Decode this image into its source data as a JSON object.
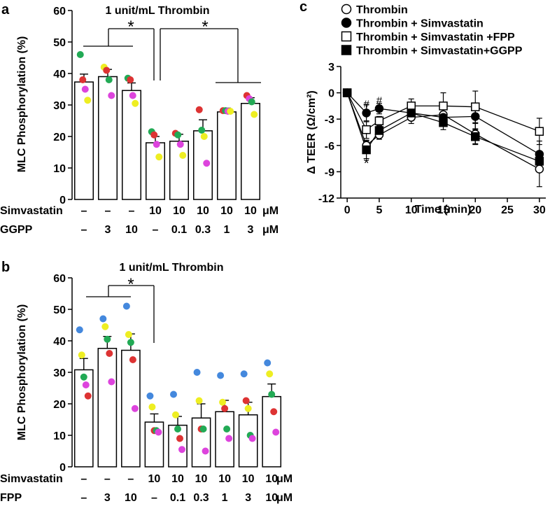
{
  "chart_data": [
    {
      "panel": "a",
      "type": "bar",
      "title": "1 unit/mL Thrombin",
      "ylabel": "MLC Phosphorylation (%)",
      "ylim": [
        0,
        60
      ],
      "yticks": [
        0,
        10,
        20,
        30,
        40,
        50,
        60
      ],
      "values": [
        37.3,
        39.0,
        34.6,
        18.0,
        18.5,
        21.8,
        27.8,
        30.5
      ],
      "errors": [
        2.5,
        2.3,
        2.4,
        2.0,
        2.2,
        3.5,
        1.2,
        1.8
      ],
      "points": [
        [
          {
            "v": 46.0,
            "c": "#22aa55"
          },
          {
            "v": 38.0,
            "c": "#dd3333"
          },
          {
            "v": 35.0,
            "c": "#dd44dd"
          },
          {
            "v": 31.5,
            "c": "#eeee22"
          }
        ],
        [
          {
            "v": 42.0,
            "c": "#eeee22"
          },
          {
            "v": 41.0,
            "c": "#dd3333"
          },
          {
            "v": 38.0,
            "c": "#22aa55"
          },
          {
            "v": 33.0,
            "c": "#dd44dd"
          }
        ],
        [
          {
            "v": 38.5,
            "c": "#22aa55"
          },
          {
            "v": 38.0,
            "c": "#dd3333"
          },
          {
            "v": 33.0,
            "c": "#dd44dd"
          },
          {
            "v": 30.5,
            "c": "#eeee22"
          }
        ],
        [
          {
            "v": 21.5,
            "c": "#22aa55"
          },
          {
            "v": 20.5,
            "c": "#dd3333"
          },
          {
            "v": 17.5,
            "c": "#dd44dd"
          },
          {
            "v": 13.5,
            "c": "#eeee22"
          }
        ],
        [
          {
            "v": 21.0,
            "c": "#dd3333"
          },
          {
            "v": 20.5,
            "c": "#22aa55"
          },
          {
            "v": 17.5,
            "c": "#dd44dd"
          },
          {
            "v": 14.0,
            "c": "#eeee22"
          }
        ],
        [
          {
            "v": 28.5,
            "c": "#dd3333"
          },
          {
            "v": 22.0,
            "c": "#22aa55"
          },
          {
            "v": 20.0,
            "c": "#eeee22"
          },
          {
            "v": 11.5,
            "c": "#dd44dd"
          }
        ],
        [
          {
            "v": 28.2,
            "c": "#dd3333"
          },
          {
            "v": 28.2,
            "c": "#22aa55"
          },
          {
            "v": 28.0,
            "c": "#dd44dd"
          },
          {
            "v": 28.0,
            "c": "#eeee22"
          }
        ],
        [
          {
            "v": 33.0,
            "c": "#dd3333"
          },
          {
            "v": 32.0,
            "c": "#dd44dd"
          },
          {
            "v": 31.0,
            "c": "#22aa55"
          },
          {
            "v": 27.0,
            "c": "#eeee22"
          }
        ]
      ],
      "rows": [
        {
          "label": "Simvastatin",
          "unit": "μM",
          "cells": [
            "–",
            "–",
            "–",
            "10",
            "10",
            "10",
            "10",
            "10"
          ]
        },
        {
          "label": "GGPP",
          "unit": "μM",
          "cells": [
            "–",
            "3",
            "10",
            "–",
            "0.1",
            "0.3",
            "1",
            "3"
          ]
        }
      ],
      "significance": "*"
    },
    {
      "panel": "b",
      "type": "bar",
      "title": "1 unit/mL Thrombin",
      "ylabel": "MLC Phosphorylation (%)",
      "ylim": [
        0,
        60
      ],
      "yticks": [
        0,
        10,
        20,
        30,
        40,
        50,
        60
      ],
      "values": [
        30.8,
        37.6,
        37.0,
        14.2,
        13.2,
        15.5,
        17.5,
        16.5,
        22.3
      ],
      "errors": [
        3.6,
        3.8,
        5.2,
        2.6,
        2.8,
        4.5,
        3.6,
        4.0,
        4.0
      ],
      "points": [
        [
          {
            "v": 43.5,
            "c": "#4488dd"
          },
          {
            "v": 35.5,
            "c": "#eeee22"
          },
          {
            "v": 28.5,
            "c": "#22aa55"
          },
          {
            "v": 26.0,
            "c": "#dd44dd"
          },
          {
            "v": 22.5,
            "c": "#dd3333"
          }
        ],
        [
          {
            "v": 47.0,
            "c": "#4488dd"
          },
          {
            "v": 44.5,
            "c": "#eeee22"
          },
          {
            "v": 40.5,
            "c": "#22aa55"
          },
          {
            "v": 36.0,
            "c": "#dd3333"
          },
          {
            "v": 27.0,
            "c": "#dd44dd"
          }
        ],
        [
          {
            "v": 51.0,
            "c": "#4488dd"
          },
          {
            "v": 42.0,
            "c": "#eeee22"
          },
          {
            "v": 39.5,
            "c": "#22aa55"
          },
          {
            "v": 34.0,
            "c": "#dd3333"
          },
          {
            "v": 18.5,
            "c": "#dd44dd"
          }
        ],
        [
          {
            "v": 22.5,
            "c": "#4488dd"
          },
          {
            "v": 19.0,
            "c": "#eeee22"
          },
          {
            "v": 11.5,
            "c": "#dd3333"
          },
          {
            "v": 11.5,
            "c": "#22aa55"
          },
          {
            "v": 11.0,
            "c": "#dd44dd"
          }
        ],
        [
          {
            "v": 23.0,
            "c": "#4488dd"
          },
          {
            "v": 16.5,
            "c": "#eeee22"
          },
          {
            "v": 12.0,
            "c": "#22aa55"
          },
          {
            "v": 9.0,
            "c": "#dd3333"
          },
          {
            "v": 5.5,
            "c": "#dd44dd"
          }
        ],
        [
          {
            "v": 30.0,
            "c": "#4488dd"
          },
          {
            "v": 21.0,
            "c": "#eeee22"
          },
          {
            "v": 12.0,
            "c": "#dd3333"
          },
          {
            "v": 12.0,
            "c": "#22aa55"
          },
          {
            "v": 5.0,
            "c": "#dd44dd"
          }
        ],
        [
          {
            "v": 29.0,
            "c": "#4488dd"
          },
          {
            "v": 20.5,
            "c": "#eeee22"
          },
          {
            "v": 18.5,
            "c": "#dd3333"
          },
          {
            "v": 12.0,
            "c": "#22aa55"
          },
          {
            "v": 9.0,
            "c": "#dd44dd"
          }
        ],
        [
          {
            "v": 29.5,
            "c": "#4488dd"
          },
          {
            "v": 21.0,
            "c": "#dd3333"
          },
          {
            "v": 18.5,
            "c": "#eeee22"
          },
          {
            "v": 10.0,
            "c": "#22aa55"
          },
          {
            "v": 9.0,
            "c": "#dd44dd"
          }
        ],
        [
          {
            "v": 33.0,
            "c": "#4488dd"
          },
          {
            "v": 29.5,
            "c": "#eeee22"
          },
          {
            "v": 23.0,
            "c": "#22aa55"
          },
          {
            "v": 17.5,
            "c": "#dd3333"
          },
          {
            "v": 11.0,
            "c": "#dd44dd"
          }
        ]
      ],
      "rows": [
        {
          "label": "Simvastatin",
          "unit": "μM",
          "cells": [
            "–",
            "–",
            "–",
            "10",
            "10",
            "10",
            "10",
            "10",
            "10"
          ]
        },
        {
          "label": "FPP",
          "unit": "μM",
          "cells": [
            "–",
            "3",
            "10",
            "–",
            "0.1",
            "0.3",
            "1",
            "3",
            "10"
          ]
        }
      ],
      "significance": "*"
    },
    {
      "panel": "c",
      "type": "line",
      "xlabel": "Time (min)",
      "ylabel": "Δ TEER (Ω/cm²)",
      "xlim": [
        -1,
        31
      ],
      "ylim": [
        -12,
        3
      ],
      "xticks": [
        0,
        5,
        10,
        15,
        20,
        25,
        30
      ],
      "yticks": [
        3,
        0,
        -3,
        -6,
        -9,
        -12
      ],
      "series": [
        {
          "name": "Thrombin",
          "marker": "circle",
          "fill": "white",
          "x": [
            0,
            3,
            5,
            10,
            15,
            20,
            30
          ],
          "y": [
            0,
            -6.0,
            -4.8,
            -2.8,
            -2.5,
            -4.7,
            -8.7
          ],
          "err": [
            0,
            0.6,
            0.5,
            0.7,
            1.2,
            1.2,
            2.0
          ]
        },
        {
          "name": "Thrombin + Simvastatin",
          "marker": "circle",
          "fill": "black",
          "x": [
            0,
            3,
            5,
            10,
            15,
            20,
            30
          ],
          "y": [
            0,
            -2.3,
            -1.8,
            -2.3,
            -2.8,
            -2.7,
            -7.0
          ],
          "err": [
            0,
            1.0,
            0.6,
            0.8,
            0.6,
            1.4,
            1.5
          ]
        },
        {
          "name": "Thrombin + Simvastatin +FPP",
          "marker": "square",
          "fill": "white",
          "x": [
            0,
            3,
            5,
            10,
            15,
            20,
            30
          ],
          "y": [
            0,
            -4.2,
            -3.2,
            -1.5,
            -1.5,
            -1.6,
            -4.4
          ],
          "err": [
            0,
            1.0,
            0.5,
            0.8,
            1.5,
            1.8,
            1.5
          ]
        },
        {
          "name": "Thrombin + Simvastatin+GGPP",
          "marker": "square",
          "fill": "black",
          "x": [
            0,
            3,
            5,
            10,
            15,
            20,
            30
          ],
          "y": [
            0,
            -6.5,
            -4.3,
            -2.3,
            -3.4,
            -5.0,
            -7.8
          ],
          "err": [
            0,
            1.0,
            0.5,
            0.6,
            0.8,
            0.8,
            1.0
          ]
        }
      ],
      "annotations": [
        {
          "text": "#",
          "x": 3,
          "y": -1.2
        },
        {
          "text": "#",
          "x": 5,
          "y": -0.8
        },
        {
          "text": "*",
          "x": 3,
          "y": -8.1
        }
      ]
    }
  ],
  "panel_labels": {
    "a": "a",
    "b": "b",
    "c": "c"
  }
}
